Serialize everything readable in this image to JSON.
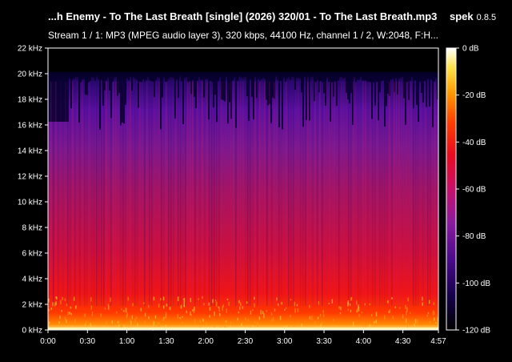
{
  "header": {
    "title": "...h Enemy - To The Last Breath [single] (2026) 320/01 - To The Last Breath.mp3",
    "app_name": "spek",
    "app_version": "0.8.5",
    "stream_info": "Stream 1 / 1: MP3 (MPEG audio layer 3), 320 kbps, 44100 Hz, channel 1 / 2, W:2048, F:H..."
  },
  "chart_data": {
    "type": "heatmap",
    "y_ticks": [
      "0 kHz",
      "2 kHz",
      "4 kHz",
      "6 kHz",
      "8 kHz",
      "10 kHz",
      "12 kHz",
      "14 kHz",
      "16 kHz",
      "18 kHz",
      "20 kHz",
      "22 kHz"
    ],
    "y_range_khz": [
      0,
      22
    ],
    "x_ticks": [
      "0:00",
      "0:30",
      "1:00",
      "1:30",
      "2:00",
      "2:30",
      "3:00",
      "3:30",
      "4:00",
      "4:30",
      "4:57"
    ],
    "x_range_seconds": [
      0,
      297
    ],
    "legend_ticks": [
      "0 dB",
      "-20 dB",
      "-40 dB",
      "-60 dB",
      "-80 dB",
      "-100 dB",
      "-120 dB"
    ],
    "legend_range_db": [
      -120,
      0
    ],
    "lowpass_cutoff_khz": 20,
    "colors": [
      "#000000",
      "#15004a",
      "#4a0a8c",
      "#8a1aa0",
      "#c8106a",
      "#e80a20",
      "#ff4000",
      "#ff9a00",
      "#ffe24a",
      "#ffffff"
    ]
  }
}
